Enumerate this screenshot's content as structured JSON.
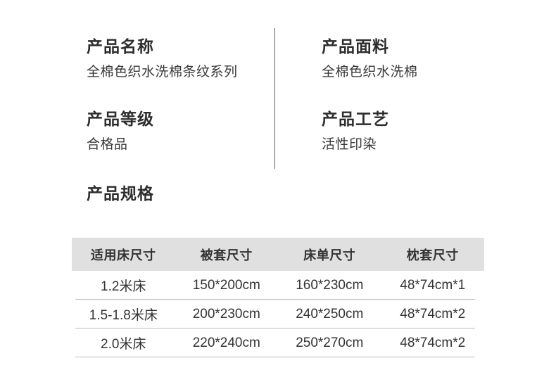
{
  "info": {
    "left": [
      {
        "heading": "产品名称",
        "value": "全棉色织水洗棉条纹系列"
      },
      {
        "heading": "产品等级",
        "value": "合格品"
      }
    ],
    "right": [
      {
        "heading": "产品面料",
        "value": "全棉色织水洗棉"
      },
      {
        "heading": "产品工艺",
        "value": "活性印染"
      }
    ]
  },
  "specs": {
    "heading": "产品规格",
    "table": {
      "headers": [
        "适用床尺寸",
        "被套尺寸",
        "床单尺寸",
        "枕套尺寸"
      ],
      "rows": [
        [
          "1.2米床",
          "150*200cm",
          "160*230cm",
          "48*74cm*1"
        ],
        [
          "1.5-1.8米床",
          "200*230cm",
          "240*250cm",
          "48*74cm*2"
        ],
        [
          "2.0米床",
          "220*240cm",
          "250*270cm",
          "48*74cm*2"
        ]
      ]
    }
  },
  "colors": {
    "page_background": "#ffffff",
    "table_header_background": "#e0e0e0",
    "row_divider_line": "#bdbdbd",
    "vertical_divider_line": "#5f5f5f",
    "heading_text": "#2d2d2d",
    "body_text": "#383838",
    "table_text": "#333333"
  }
}
